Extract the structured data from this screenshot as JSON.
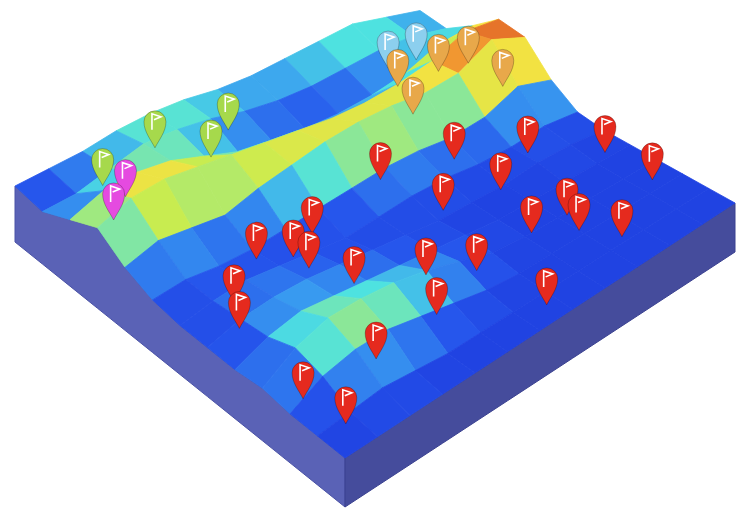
{
  "chart_data": {
    "type": "surface3d",
    "x": [
      0,
      1,
      2,
      3,
      4,
      5,
      6,
      7,
      8,
      9,
      10,
      11,
      12
    ],
    "y": [
      0,
      1,
      2,
      3,
      4,
      5,
      6,
      7,
      8,
      9,
      10,
      11,
      12
    ],
    "xlim": [
      0,
      12
    ],
    "ylim": [
      0,
      12
    ],
    "zlim": [
      0,
      1
    ],
    "z": [
      [
        0.2,
        0.25,
        0.3,
        0.4,
        0.45,
        0.45,
        0.4,
        0.4,
        0.45,
        0.5,
        0.55,
        0.45,
        0.35
      ],
      [
        0.15,
        0.2,
        0.35,
        0.5,
        0.5,
        0.45,
        0.35,
        0.3,
        0.3,
        0.35,
        0.4,
        0.4,
        0.3
      ],
      [
        0.35,
        0.55,
        0.6,
        0.55,
        0.4,
        0.25,
        0.2,
        0.15,
        0.15,
        0.2,
        0.3,
        0.5,
        0.55
      ],
      [
        0.55,
        0.75,
        0.8,
        0.75,
        0.7,
        0.65,
        0.6,
        0.55,
        0.55,
        0.6,
        0.7,
        0.9,
        0.85
      ],
      [
        0.3,
        0.45,
        0.4,
        0.35,
        0.5,
        0.6,
        0.7,
        0.75,
        0.75,
        0.7,
        0.75,
        1.0,
        0.8
      ],
      [
        0.15,
        0.2,
        0.15,
        0.15,
        0.2,
        0.25,
        0.3,
        0.35,
        0.35,
        0.3,
        0.35,
        0.55,
        0.4
      ],
      [
        0.1,
        0.2,
        0.25,
        0.2,
        0.15,
        0.1,
        0.15,
        0.2,
        0.2,
        0.15,
        0.15,
        0.2,
        0.15
      ],
      [
        0.1,
        0.25,
        0.3,
        0.3,
        0.25,
        0.2,
        0.15,
        0.1,
        0.1,
        0.1,
        0.15,
        0.15,
        0.1
      ],
      [
        0.1,
        0.3,
        0.4,
        0.35,
        0.3,
        0.25,
        0.2,
        0.15,
        0.1,
        0.1,
        0.1,
        0.1,
        0.1
      ],
      [
        0.15,
        0.45,
        0.6,
        0.6,
        0.55,
        0.45,
        0.3,
        0.15,
        0.1,
        0.1,
        0.1,
        0.1,
        0.1
      ],
      [
        0.1,
        0.35,
        0.45,
        0.45,
        0.35,
        0.25,
        0.15,
        0.1,
        0.1,
        0.1,
        0.1,
        0.1,
        0.1
      ],
      [
        0.1,
        0.15,
        0.2,
        0.15,
        0.1,
        0.1,
        0.1,
        0.1,
        0.1,
        0.1,
        0.1,
        0.1,
        0.1
      ],
      [
        0.1,
        0.1,
        0.1,
        0.1,
        0.1,
        0.1,
        0.1,
        0.1,
        0.1,
        0.1,
        0.1,
        0.1,
        0.1
      ]
    ],
    "pins": [
      {
        "x": 10.0,
        "y": 0.4,
        "color": "#e52a1e"
      },
      {
        "x": 11.2,
        "y": 0.7,
        "color": "#e52a1e"
      },
      {
        "x": 10.4,
        "y": 2.3,
        "color": "#e52a1e"
      },
      {
        "x": 7.2,
        "y": 0.8,
        "color": "#e52a1e"
      },
      {
        "x": 6.4,
        "y": 1.3,
        "color": "#e52a1e"
      },
      {
        "x": 5.4,
        "y": 2.8,
        "color": "#e52a1e"
      },
      {
        "x": 5.9,
        "y": 3.5,
        "color": "#e52a1e"
      },
      {
        "x": 6.6,
        "y": 3.4,
        "color": "#e52a1e"
      },
      {
        "x": 5.5,
        "y": 4.4,
        "color": "#e52a1e"
      },
      {
        "x": 7.9,
        "y": 3.7,
        "color": "#e52a1e"
      },
      {
        "x": 9.1,
        "y": 4.9,
        "color": "#e52a1e"
      },
      {
        "x": 10.1,
        "y": 4.4,
        "color": "#e52a1e"
      },
      {
        "x": 9.4,
        "y": 6.2,
        "color": "#e52a1e"
      },
      {
        "x": 5.2,
        "y": 6.7,
        "color": "#e52a1e"
      },
      {
        "x": 6.8,
        "y": 7.3,
        "color": "#e52a1e"
      },
      {
        "x": 5.6,
        "y": 8.6,
        "color": "#e52a1e"
      },
      {
        "x": 7.1,
        "y": 8.8,
        "color": "#e52a1e"
      },
      {
        "x": 6.5,
        "y": 10.1,
        "color": "#e52a1e"
      },
      {
        "x": 9.0,
        "y": 8.2,
        "color": "#e52a1e"
      },
      {
        "x": 11.4,
        "y": 6.7,
        "color": "#e52a1e"
      },
      {
        "x": 9.1,
        "y": 9.2,
        "color": "#e52a1e"
      },
      {
        "x": 9.8,
        "y": 9.0,
        "color": "#e52a1e"
      },
      {
        "x": 7.8,
        "y": 11.4,
        "color": "#e52a1e"
      },
      {
        "x": 10.8,
        "y": 9.5,
        "color": "#e52a1e"
      },
      {
        "x": 9.6,
        "y": 11.4,
        "color": "#e52a1e"
      },
      {
        "x": 3.1,
        "y": 8.9,
        "color": "#e8a84a"
      },
      {
        "x": 4.3,
        "y": 8.4,
        "color": "#e8a84a"
      },
      {
        "x": 3.5,
        "y": 9.8,
        "color": "#e8a84a"
      },
      {
        "x": 4.0,
        "y": 10.3,
        "color": "#e8a84a"
      },
      {
        "x": 4.8,
        "y": 10.7,
        "color": "#e8a84a"
      },
      {
        "x": 1.6,
        "y": 9.8,
        "color": "#8ccfee"
      },
      {
        "x": 1.9,
        "y": 10.4,
        "color": "#8ccfee"
      },
      {
        "x": 1.6,
        "y": 1.3,
        "color": "#a6d94c"
      },
      {
        "x": 1.3,
        "y": 3.1,
        "color": "#a6d94c"
      },
      {
        "x": 2.5,
        "y": 3.8,
        "color": "#a6d94c"
      },
      {
        "x": 1.4,
        "y": 5.2,
        "color": "#a6d94c"
      },
      {
        "x": 3.1,
        "y": 0.4,
        "color": "#e54ae0"
      },
      {
        "x": 2.8,
        "y": 1.0,
        "color": "#e54ae0"
      }
    ]
  }
}
